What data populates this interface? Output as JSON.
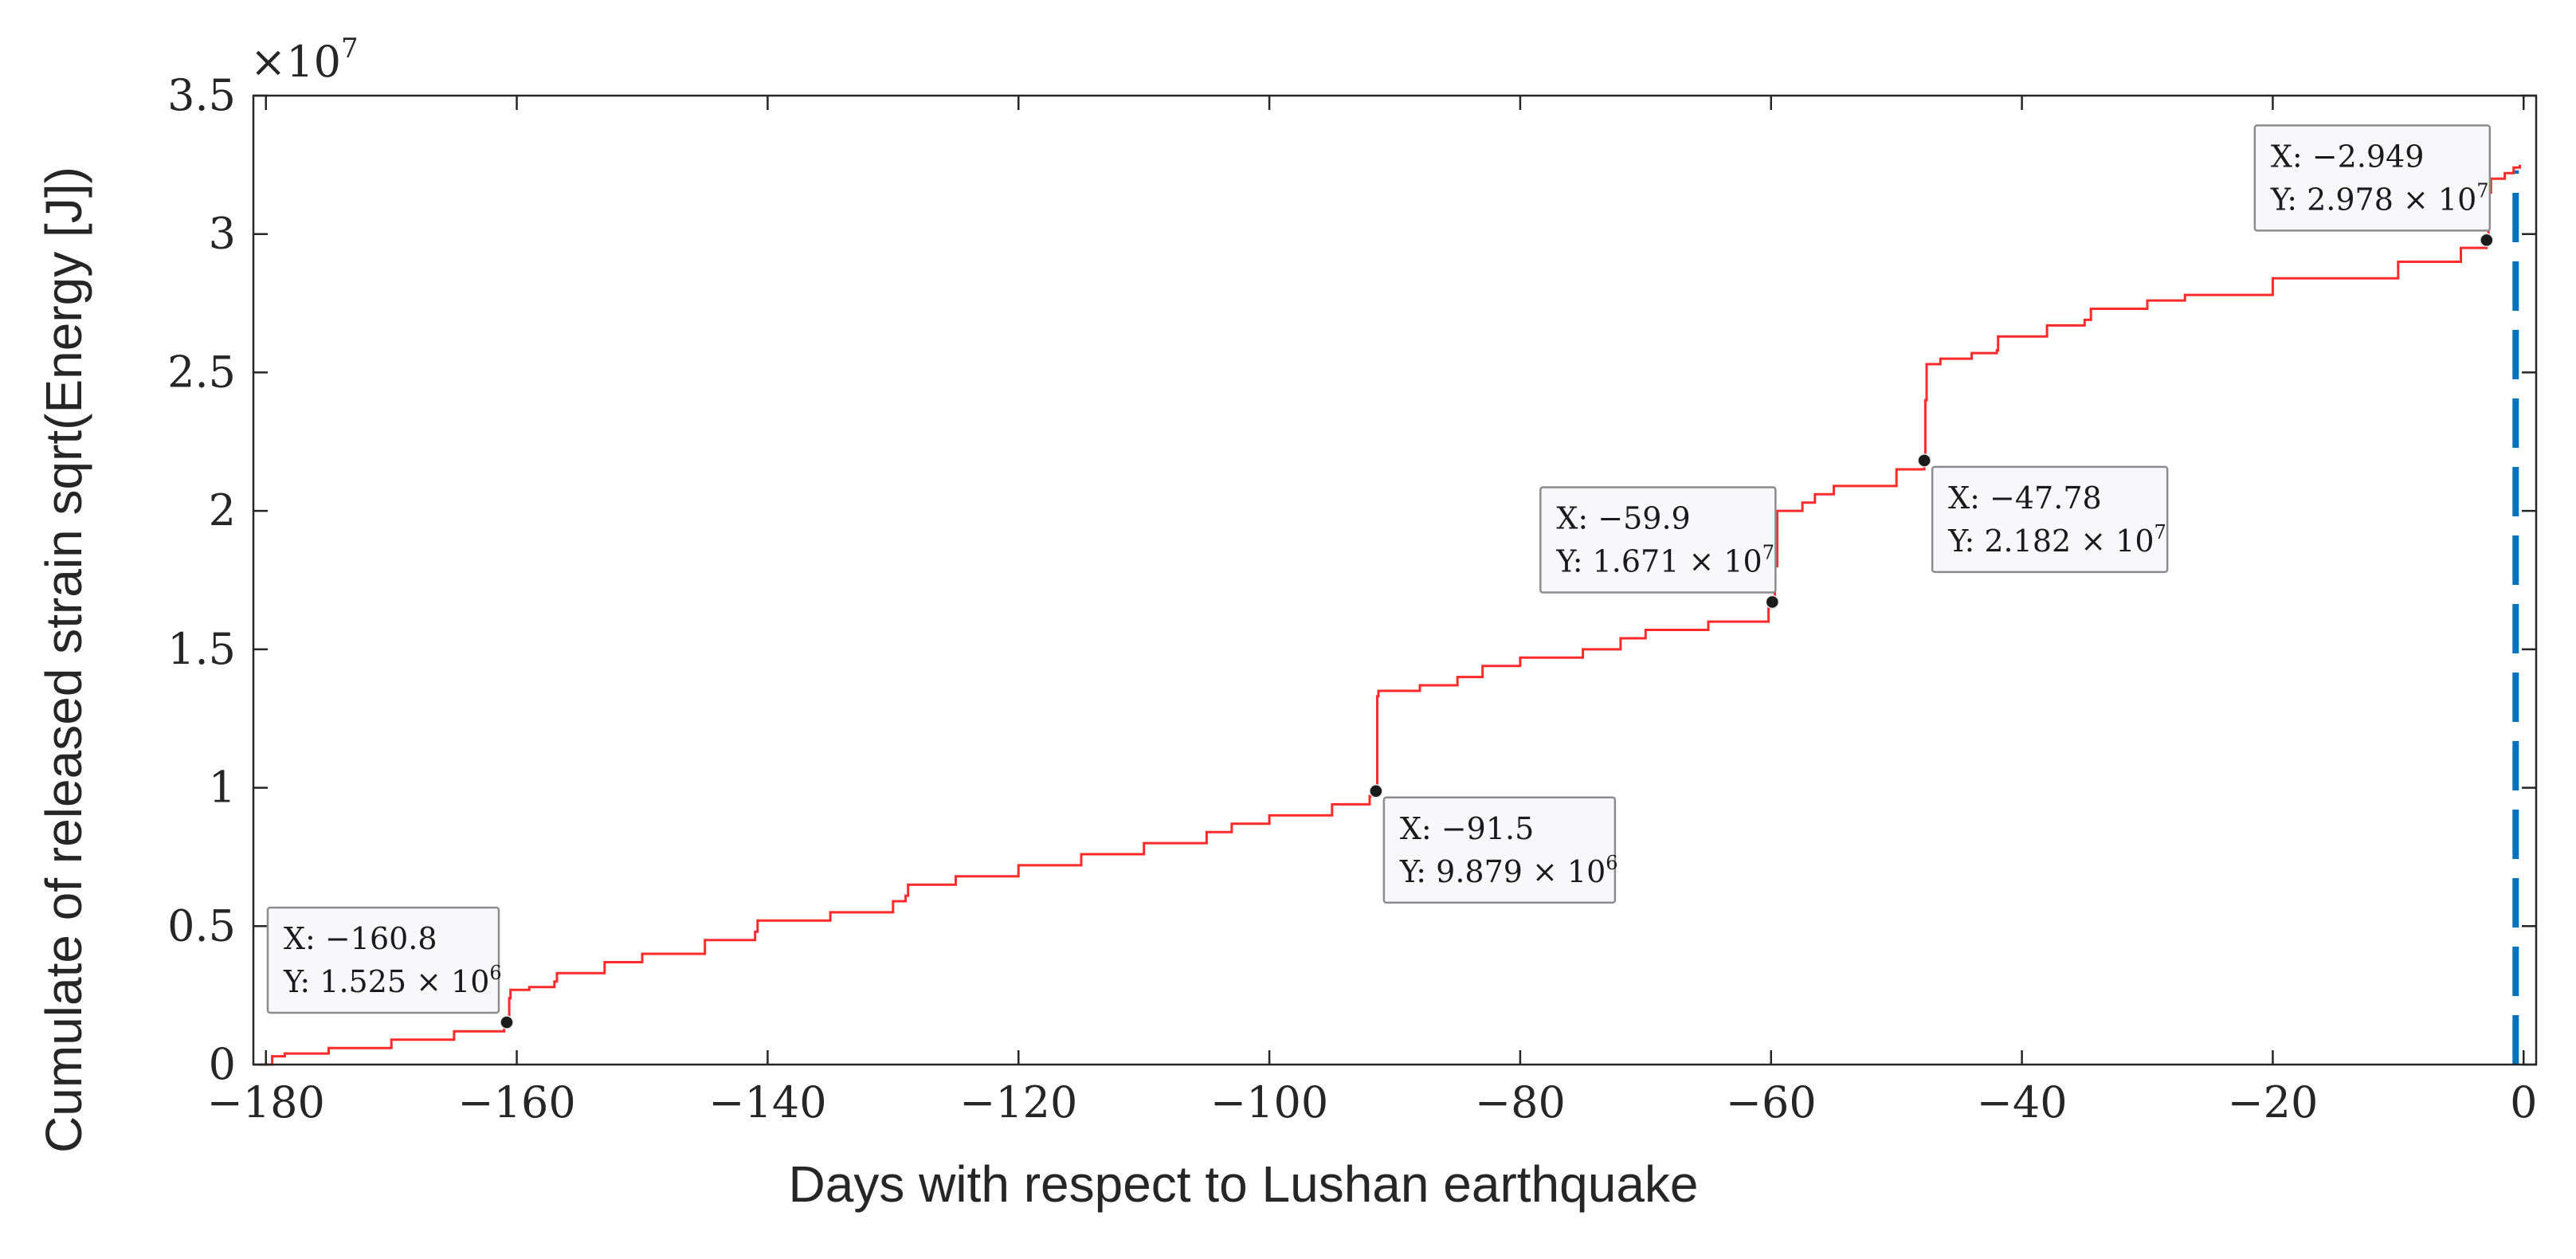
{
  "chart_data": {
    "type": "line",
    "xlabel": "Days with respect to Lushan earthquake",
    "ylabel": "Cumulate of released strain sqrt(Energy [J])",
    "xlim": [
      -181,
      1
    ],
    "ylim": [
      0,
      35000000
    ],
    "y_multiplier_label": "×10",
    "y_multiplier_exponent": "7",
    "grid": false,
    "x_ticks": [
      -180,
      -160,
      -140,
      -120,
      -100,
      -80,
      -60,
      -40,
      -20,
      0
    ],
    "x_tick_labels": [
      "−180",
      "−160",
      "−140",
      "−120",
      "−100",
      "−80",
      "−60",
      "−40",
      "−20",
      "0"
    ],
    "y_ticks": [
      0,
      5000000,
      10000000,
      15000000,
      20000000,
      25000000,
      30000000,
      35000000
    ],
    "y_tick_labels": [
      "0",
      "0.5",
      "1",
      "1.5",
      "2",
      "2.5",
      "3",
      "3.5"
    ],
    "series": [
      {
        "color": "#ff2a2a",
        "x": [
          -180.5,
          -179.5,
          -178.5,
          -175,
          -170,
          -165,
          -161,
          -160.8,
          -160.6,
          -160.5,
          -159,
          -157,
          -156.8,
          -153,
          -150,
          -145,
          -141,
          -140.8,
          -135,
          -130,
          -129,
          -128.8,
          -125,
          -120,
          -115,
          -110,
          -105,
          -103,
          -100,
          -95,
          -92,
          -91.5,
          -91.4,
          -91.3,
          -88,
          -85,
          -83,
          -80,
          -75,
          -72,
          -70,
          -65,
          -60.2,
          -59.9,
          -59.7,
          -59.5,
          -57.5,
          -56.5,
          -55,
          -50,
          -47.78,
          -47.7,
          -47.6,
          -46.5,
          -44,
          -42,
          -41.9,
          -38,
          -35,
          -34.5,
          -30,
          -27,
          -20,
          -10,
          -5,
          -2.949,
          -2.8,
          -2.6,
          -1.5,
          -0.8,
          -0.3
        ],
        "y": [
          0,
          300000,
          400000,
          600000,
          900000,
          1200000,
          1450000,
          1525000,
          2400000,
          2700000,
          2800000,
          3000000,
          3300000,
          3700000,
          4000000,
          4500000,
          4800000,
          5200000,
          5500000,
          5900000,
          6100000,
          6500000,
          6800000,
          7200000,
          7600000,
          8000000,
          8400000,
          8700000,
          9000000,
          9400000,
          9700000,
          9879000,
          13300000,
          13500000,
          13700000,
          14000000,
          14400000,
          14700000,
          15000000,
          15400000,
          15700000,
          16000000,
          16500000,
          16710000,
          18000000,
          20000000,
          20300000,
          20600000,
          20900000,
          21500000,
          21820000,
          24000000,
          25300000,
          25500000,
          25700000,
          25800000,
          26300000,
          26700000,
          26900000,
          27300000,
          27600000,
          27800000,
          28400000,
          29000000,
          29500000,
          29780000,
          31500000,
          32000000,
          32200000,
          32400000,
          32500000
        ]
      }
    ],
    "event_line": {
      "x": 0,
      "color": "#0072bd",
      "style": "dashed"
    },
    "datatips": [
      {
        "x": -160.8,
        "y": 1525000,
        "x_text": "X: −160.8",
        "y_text": "Y: 1.525 × 10",
        "y_exp": "6",
        "box_pos": "above-left"
      },
      {
        "x": -91.5,
        "y": 9879000,
        "x_text": "X: −91.5",
        "y_text": "Y: 9.879 × 10",
        "y_exp": "6",
        "box_pos": "below-right"
      },
      {
        "x": -59.9,
        "y": 16710000,
        "x_text": "X: −59.9",
        "y_text": "Y: 1.671 × 10",
        "y_exp": "7",
        "box_pos": "above-left"
      },
      {
        "x": -47.78,
        "y": 21820000,
        "x_text": "X: −47.78",
        "y_text": "Y: 2.182 × 10",
        "y_exp": "7",
        "box_pos": "below-right"
      },
      {
        "x": -2.949,
        "y": 29780000,
        "x_text": "X: −2.949",
        "y_text": "Y: 2.978 × 10",
        "y_exp": "7",
        "box_pos": "above-left"
      }
    ]
  }
}
